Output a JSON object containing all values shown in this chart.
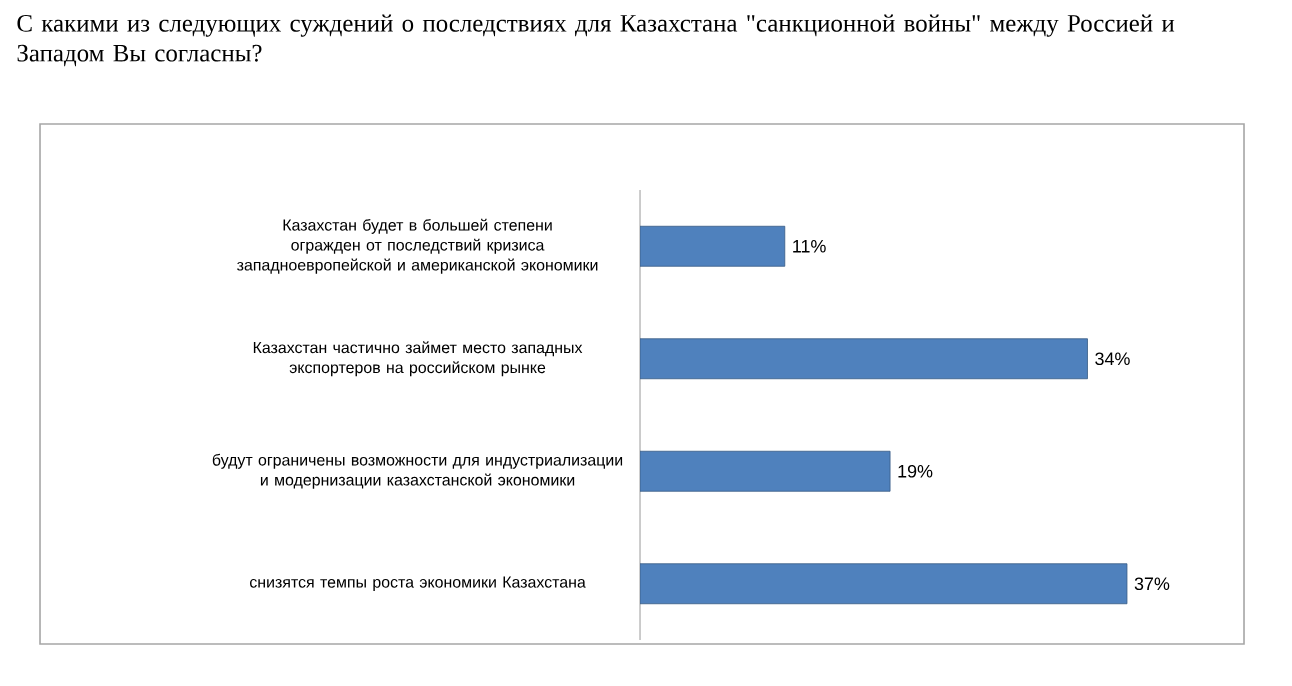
{
  "chart_data": {
    "type": "bar",
    "orientation": "horizontal",
    "title": "С какими из следующих суждений о последствиях для Казахстана \"санкционной войны\" между Россией и Западом Вы согласны?",
    "categories": [
      "Казахстан будет в большей степени огражден от последствий кризиса западноевропейской и американской экономики",
      "Казахстан частично займет место западных экспортеров на российском рынке",
      "будут ограничены возможности для индустриализации и модернизации казахстанской экономики",
      "снизятся темпы роста экономики Казахстана"
    ],
    "values": [
      11,
      34,
      19,
      37
    ],
    "value_labels": [
      "11%",
      "34%",
      "19%",
      "37%"
    ],
    "color": "#4f81bd"
  }
}
